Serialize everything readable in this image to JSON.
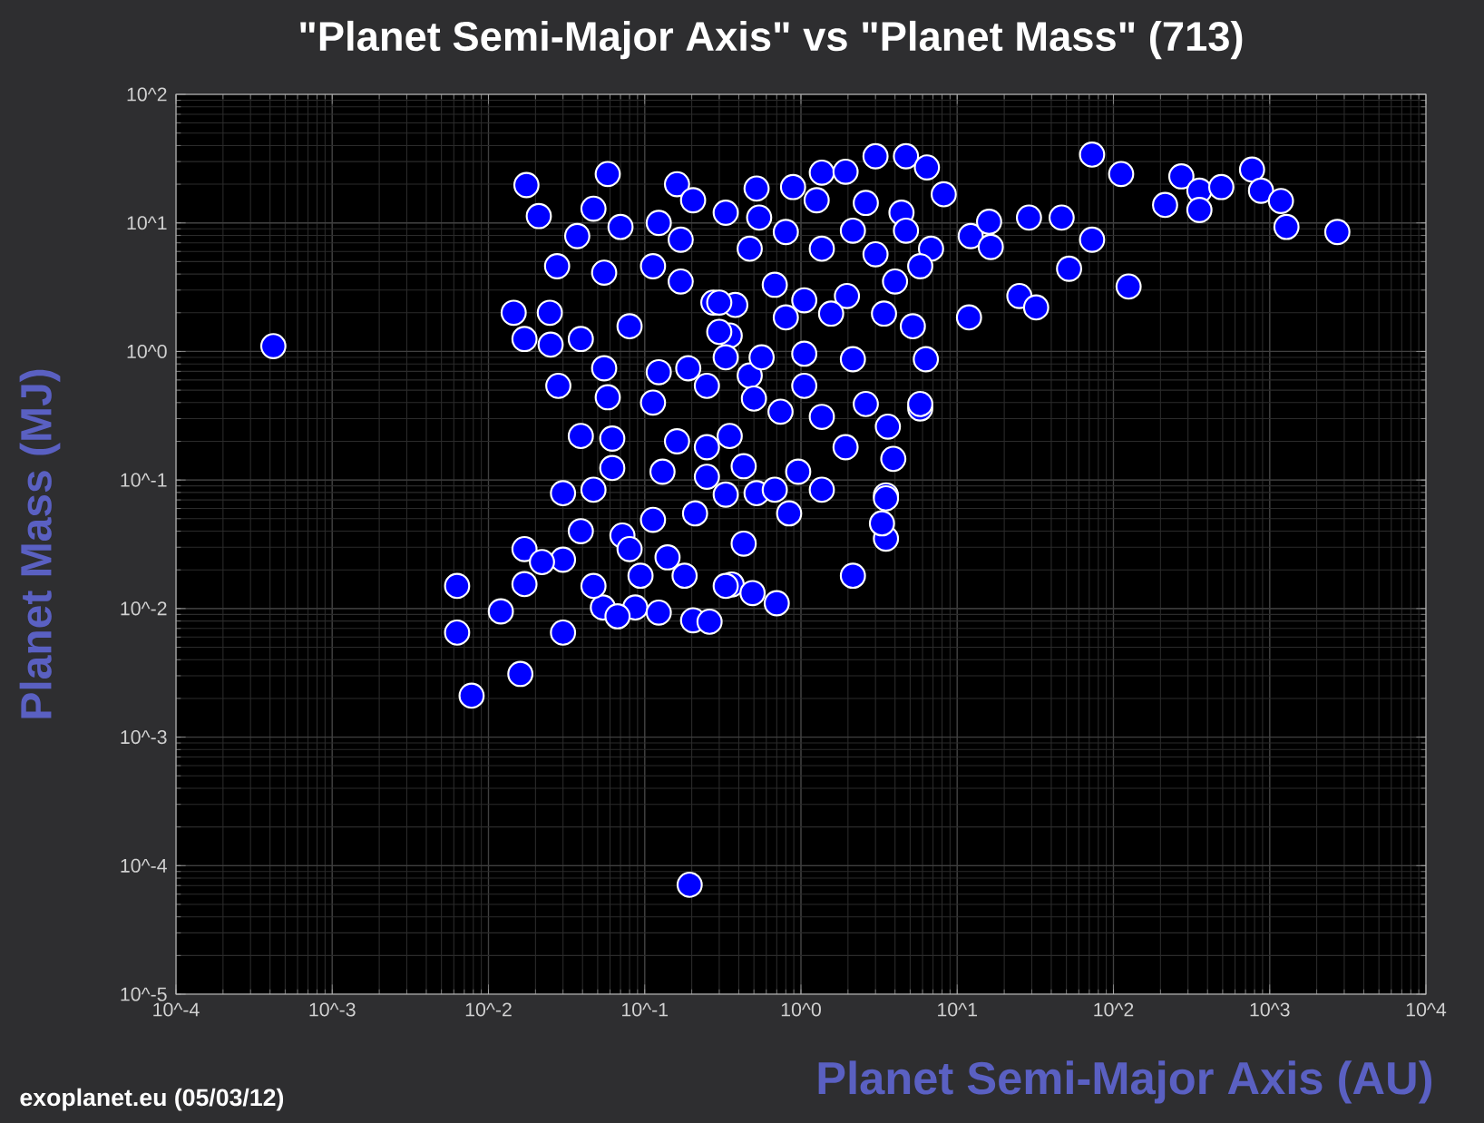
{
  "chart_data": {
    "type": "scatter",
    "title": "\"Planet Semi-Major Axis\"  vs \"Planet Mass\" (713)",
    "xlabel": "Planet Semi-Major Axis (AU)",
    "ylabel": "Planet Mass (MJ)",
    "annotations": [
      "exoplanet.eu (05/03/12)"
    ],
    "log": "xy",
    "grid": true,
    "xlim": [
      0.0001,
      10000
    ],
    "ylim": [
      1e-05,
      100
    ],
    "xticks": [
      {
        "value": 0.0001,
        "label": "10^-4"
      },
      {
        "value": 0.001,
        "label": "10^-3"
      },
      {
        "value": 0.01,
        "label": "10^-2"
      },
      {
        "value": 0.1,
        "label": "10^-1"
      },
      {
        "value": 1,
        "label": "10^0"
      },
      {
        "value": 10,
        "label": "10^1"
      },
      {
        "value": 100,
        "label": "10^2"
      },
      {
        "value": 1000,
        "label": "10^3"
      },
      {
        "value": 10000,
        "label": "10^4"
      }
    ],
    "yticks": [
      {
        "value": 1e-05,
        "label": "10^-5"
      },
      {
        "value": 0.0001,
        "label": "10^-4"
      },
      {
        "value": 0.001,
        "label": "10^-3"
      },
      {
        "value": 0.01,
        "label": "10^-2"
      },
      {
        "value": 0.1,
        "label": "10^-1"
      },
      {
        "value": 1,
        "label": "10^0"
      },
      {
        "value": 10,
        "label": "10^1"
      },
      {
        "value": 100,
        "label": "10^2"
      }
    ],
    "series": [
      {
        "color": "#0000ff",
        "x": [
          0.00042,
          0.194,
          0.0078,
          0.0063,
          0.0063,
          0.016,
          0.012,
          0.03,
          0.017,
          0.017,
          0.03,
          0.022,
          2.15,
          0.7,
          3.5,
          3.3,
          3.5,
          5.8,
          11.9,
          12.2,
          16.4,
          16,
          28.8,
          46.6,
          25,
          32,
          52,
          73,
          112,
          73,
          125,
          214,
          272,
          355,
          355,
          490,
          771,
          880,
          1180,
          1280,
          2710,
          0.0175,
          0.058,
          0.021,
          0.047,
          0.161,
          0.204,
          0.123,
          0.17,
          0.037,
          0.07,
          0.0145,
          0.017,
          0.0275,
          0.055,
          0.113,
          0.17,
          0.275,
          0.38,
          0.0247,
          0.039,
          0.08,
          0.025,
          0.055,
          0.123,
          0.19,
          0.028,
          0.058,
          0.113,
          0.039,
          0.062,
          0.161,
          0.25,
          0.35,
          0.25,
          0.35,
          0.47,
          0.03,
          0.062,
          0.13,
          0.25,
          0.047,
          0.039,
          0.072,
          0.113,
          0.21,
          0.43,
          0.52,
          0.84,
          0.054,
          0.087,
          0.123,
          0.067,
          0.047,
          0.094,
          0.18,
          0.204,
          0.26,
          0.36,
          0.49,
          0.08,
          0.14,
          3.0,
          4.7,
          6.4,
          8.2,
          1.36,
          1.93,
          0.52,
          0.89,
          0.33,
          0.54,
          1.26,
          2.6,
          4.4,
          0.8,
          2.15,
          4.7,
          6.8,
          0.47,
          1.36,
          3.0,
          5.8,
          0.68,
          1.97,
          4.0,
          1.05,
          0.3,
          0.8,
          1.56,
          3.4,
          5.2,
          0.3,
          0.56,
          1.05,
          2.15,
          6.3,
          0.33,
          0.5,
          1.05,
          2.6,
          5.8,
          0.74,
          1.36,
          3.6,
          1.93,
          3.9,
          0.43,
          0.96,
          1.36,
          3.5,
          0.68,
          0.33,
          0.33
        ],
        "values": [
          1.1,
          7.1e-05,
          0.0021,
          0.015,
          0.0065,
          0.0031,
          0.0095,
          0.0065,
          0.029,
          0.0155,
          0.024,
          0.023,
          0.018,
          0.011,
          0.035,
          0.046,
          0.076,
          0.36,
          1.84,
          7.9,
          6.5,
          10.2,
          11,
          11,
          2.7,
          2.2,
          4.4,
          34,
          24,
          7.4,
          3.2,
          13.8,
          23,
          17.8,
          12.6,
          19,
          26,
          17.8,
          14.8,
          9.3,
          8.5,
          19.7,
          24,
          11.3,
          12.9,
          20,
          15,
          10,
          7.4,
          7.9,
          9.3,
          2.0,
          1.25,
          4.6,
          4.1,
          4.6,
          3.5,
          2.4,
          2.3,
          2.0,
          1.25,
          1.57,
          1.13,
          0.74,
          0.69,
          0.74,
          0.54,
          0.44,
          0.4,
          0.22,
          0.21,
          0.2,
          0.18,
          1.33,
          0.54,
          0.22,
          0.65,
          0.079,
          0.124,
          0.116,
          0.106,
          0.084,
          0.04,
          0.037,
          0.049,
          0.055,
          0.032,
          0.079,
          0.055,
          0.0102,
          0.0102,
          0.0093,
          0.0087,
          0.015,
          0.018,
          0.018,
          0.0081,
          0.0079,
          0.0154,
          0.0132,
          0.029,
          0.025,
          33,
          33,
          27,
          16.7,
          24.6,
          25,
          18.5,
          19,
          12,
          11,
          15,
          14.3,
          12,
          8.5,
          8.7,
          8.7,
          6.3,
          6.3,
          6.3,
          5.7,
          4.6,
          3.3,
          2.7,
          3.5,
          2.5,
          2.4,
          1.84,
          1.97,
          1.97,
          1.57,
          1.42,
          0.9,
          0.96,
          0.87,
          0.87,
          0.9,
          0.43,
          0.54,
          0.39,
          0.39,
          0.34,
          0.31,
          0.26,
          0.18,
          0.146,
          0.128,
          0.116,
          0.084,
          0.072,
          0.084,
          0.077,
          0.015
        ]
      }
    ]
  }
}
